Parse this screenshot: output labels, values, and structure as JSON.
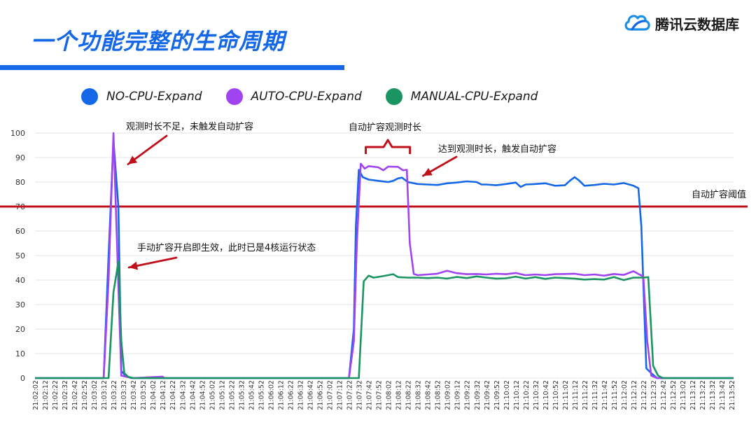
{
  "header": {
    "title": "一个功能完整的生命周期",
    "brand": "腾讯云数据库",
    "brand_icon": "cloud-icon",
    "accent_color": "#1467e6"
  },
  "chart_data": {
    "type": "line",
    "ylim": [
      0,
      100
    ],
    "yticks": [
      0,
      10,
      20,
      30,
      40,
      50,
      60,
      70,
      80,
      90,
      100
    ],
    "grid": true,
    "legend_position": "top-left",
    "x_categories": [
      "21:02:02",
      "21:02:12",
      "21:02:22",
      "21:02:32",
      "21:02:42",
      "21:02:52",
      "21:03:02",
      "21:03:12",
      "21:03:22",
      "21:03:32",
      "21:03:42",
      "21:03:52",
      "21:04:02",
      "21:04:12",
      "21:04:22",
      "21:04:32",
      "21:04:42",
      "21:04:52",
      "21:05:02",
      "21:05:12",
      "21:05:22",
      "21:05:32",
      "21:05:42",
      "21:05:52",
      "21:06:02",
      "21:06:12",
      "21:06:22",
      "21:06:32",
      "21:06:42",
      "21:06:52",
      "21:07:02",
      "21:07:12",
      "21:07:22",
      "21:07:32",
      "21:07:42",
      "21:07:52",
      "21:08:02",
      "21:08:12",
      "21:08:22",
      "21:08:32",
      "21:08:42",
      "21:08:52",
      "21:09:02",
      "21:09:12",
      "21:09:22",
      "21:09:32",
      "21:09:42",
      "21:09:52",
      "21:10:02",
      "21:10:12",
      "21:10:22",
      "21:10:32",
      "21:10:42",
      "21:10:52",
      "21:11:02",
      "21:11:12",
      "21:11:22",
      "21:11:32",
      "21:11:42",
      "21:11:52",
      "21:12:02",
      "21:12:12",
      "21:12:22",
      "21:12:32",
      "21:12:42",
      "21:12:52",
      "21:13:02",
      "21:13:12",
      "21:13:22",
      "21:13:32",
      "21:13:42",
      "21:13:52"
    ],
    "series": [
      {
        "name": "NO-CPU-Expand",
        "color": "#1467e6",
        "points": [
          [
            "21:02:02",
            0
          ],
          [
            "21:03:12",
            0
          ],
          [
            "21:03:17",
            50
          ],
          [
            "21:03:22",
            97
          ],
          [
            "21:03:27",
            70
          ],
          [
            "21:03:30",
            3
          ],
          [
            "21:03:34",
            1
          ],
          [
            "21:03:40",
            0
          ],
          [
            "21:07:22",
            0
          ],
          [
            "21:07:27",
            20
          ],
          [
            "21:07:29",
            62
          ],
          [
            "21:07:32",
            85
          ],
          [
            "21:07:36",
            82
          ],
          [
            "21:07:42",
            81
          ],
          [
            "21:07:52",
            80.5
          ],
          [
            "21:08:02",
            80
          ],
          [
            "21:08:07",
            80.5
          ],
          [
            "21:08:12",
            81.5
          ],
          [
            "21:08:16",
            81.8
          ],
          [
            "21:08:22",
            80
          ],
          [
            "21:08:32",
            79.2
          ],
          [
            "21:08:42",
            79
          ],
          [
            "21:08:52",
            78.8
          ],
          [
            "21:09:02",
            79.5
          ],
          [
            "21:09:12",
            79.8
          ],
          [
            "21:09:22",
            80.3
          ],
          [
            "21:09:32",
            80
          ],
          [
            "21:09:37",
            79
          ],
          [
            "21:09:42",
            79
          ],
          [
            "21:09:52",
            78.7
          ],
          [
            "21:10:02",
            79.2
          ],
          [
            "21:10:12",
            79.8
          ],
          [
            "21:10:17",
            78
          ],
          [
            "21:10:22",
            79
          ],
          [
            "21:10:32",
            79.2
          ],
          [
            "21:10:42",
            79.5
          ],
          [
            "21:10:52",
            78.5
          ],
          [
            "21:11:02",
            78.7
          ],
          [
            "21:11:07",
            80.5
          ],
          [
            "21:11:12",
            82
          ],
          [
            "21:11:17",
            80.5
          ],
          [
            "21:11:22",
            78.5
          ],
          [
            "21:11:32",
            78.8
          ],
          [
            "21:11:42",
            79.3
          ],
          [
            "21:11:52",
            79
          ],
          [
            "21:12:02",
            79.6
          ],
          [
            "21:12:12",
            78.5
          ],
          [
            "21:12:17",
            77.5
          ],
          [
            "21:12:20",
            62
          ],
          [
            "21:12:25",
            4
          ],
          [
            "21:12:30",
            2
          ],
          [
            "21:12:36",
            0
          ],
          [
            "21:13:54",
            0
          ]
        ]
      },
      {
        "name": "AUTO-CPU-Expand",
        "color": "#a044f0",
        "points": [
          [
            "21:02:02",
            0
          ],
          [
            "21:03:12",
            0
          ],
          [
            "21:03:17",
            40
          ],
          [
            "21:03:22",
            100
          ],
          [
            "21:03:26",
            50
          ],
          [
            "21:03:30",
            1
          ],
          [
            "21:03:36",
            0.5
          ],
          [
            "21:03:42",
            0
          ],
          [
            "21:04:12",
            0.6
          ],
          [
            "21:04:14",
            0
          ],
          [
            "21:07:22",
            0
          ],
          [
            "21:07:27",
            15
          ],
          [
            "21:07:30",
            55
          ],
          [
            "21:07:34",
            87.5
          ],
          [
            "21:07:38",
            85.5
          ],
          [
            "21:07:42",
            86.5
          ],
          [
            "21:07:52",
            86
          ],
          [
            "21:07:57",
            84.8
          ],
          [
            "21:08:02",
            86.3
          ],
          [
            "21:08:12",
            86.2
          ],
          [
            "21:08:17",
            84.8
          ],
          [
            "21:08:21",
            85
          ],
          [
            "21:08:24",
            55
          ],
          [
            "21:08:28",
            42.5
          ],
          [
            "21:08:32",
            42
          ],
          [
            "21:08:42",
            42.3
          ],
          [
            "21:08:52",
            42.6
          ],
          [
            "21:09:02",
            43.8
          ],
          [
            "21:09:12",
            42.8
          ],
          [
            "21:09:22",
            42.4
          ],
          [
            "21:09:32",
            42.5
          ],
          [
            "21:09:42",
            42.3
          ],
          [
            "21:09:52",
            42.6
          ],
          [
            "21:10:02",
            42.4
          ],
          [
            "21:10:12",
            42.9
          ],
          [
            "21:10:22",
            42
          ],
          [
            "21:10:32",
            42.3
          ],
          [
            "21:10:42",
            42
          ],
          [
            "21:10:52",
            42.4
          ],
          [
            "21:11:02",
            42.5
          ],
          [
            "21:11:12",
            42.6
          ],
          [
            "21:11:22",
            42
          ],
          [
            "21:11:32",
            42.3
          ],
          [
            "21:11:42",
            41.8
          ],
          [
            "21:11:52",
            42.5
          ],
          [
            "21:12:02",
            42.1
          ],
          [
            "21:12:12",
            43.6
          ],
          [
            "21:12:17",
            42.5
          ],
          [
            "21:12:22",
            41.5
          ],
          [
            "21:12:26",
            15
          ],
          [
            "21:12:30",
            1
          ],
          [
            "21:12:36",
            0
          ],
          [
            "21:13:54",
            0
          ]
        ]
      },
      {
        "name": "MANUAL-CPU-Expand",
        "color": "#1a9460",
        "points": [
          [
            "21:02:02",
            0
          ],
          [
            "21:03:17",
            0
          ],
          [
            "21:03:22",
            35
          ],
          [
            "21:03:27",
            47.5
          ],
          [
            "21:03:30",
            15
          ],
          [
            "21:03:33",
            2
          ],
          [
            "21:03:37",
            0.5
          ],
          [
            "21:03:42",
            0
          ],
          [
            "21:07:32",
            0
          ],
          [
            "21:07:37",
            39.5
          ],
          [
            "21:07:42",
            41.8
          ],
          [
            "21:07:47",
            41
          ],
          [
            "21:07:52",
            41.3
          ],
          [
            "21:08:02",
            42
          ],
          [
            "21:08:07",
            42.4
          ],
          [
            "21:08:12",
            41.2
          ],
          [
            "21:08:22",
            41
          ],
          [
            "21:08:32",
            41
          ],
          [
            "21:08:42",
            40.8
          ],
          [
            "21:08:52",
            41
          ],
          [
            "21:09:02",
            40.6
          ],
          [
            "21:09:12",
            41.3
          ],
          [
            "21:09:22",
            40.8
          ],
          [
            "21:09:32",
            41.5
          ],
          [
            "21:09:42",
            41
          ],
          [
            "21:09:52",
            40.6
          ],
          [
            "21:10:02",
            40.7
          ],
          [
            "21:10:12",
            41.4
          ],
          [
            "21:10:22",
            40.6
          ],
          [
            "21:10:32",
            41.2
          ],
          [
            "21:10:42",
            40.5
          ],
          [
            "21:10:52",
            41
          ],
          [
            "21:11:02",
            40.8
          ],
          [
            "21:11:12",
            40.6
          ],
          [
            "21:11:22",
            40.2
          ],
          [
            "21:11:32",
            40.4
          ],
          [
            "21:11:42",
            40.2
          ],
          [
            "21:11:52",
            41.2
          ],
          [
            "21:12:02",
            40
          ],
          [
            "21:12:12",
            41
          ],
          [
            "21:12:22",
            41
          ],
          [
            "21:12:27",
            41.2
          ],
          [
            "21:12:32",
            5
          ],
          [
            "21:12:37",
            1
          ],
          [
            "21:12:42",
            0
          ],
          [
            "21:13:54",
            0
          ]
        ]
      }
    ],
    "threshold": {
      "value": 70,
      "label": "自动扩容阈值",
      "color": "#c0101a"
    },
    "annotations": [
      {
        "text": "观测时长不足，未触发自动扩容",
        "target_x": "21:03:24",
        "target_y": 93
      },
      {
        "text": "手动扩容开启即生效，此时已是4核运行状态",
        "target_x": "21:03:32",
        "target_y": 44
      },
      {
        "text": "自动扩容观测时长",
        "from_x": "21:07:32",
        "to_x": "21:08:22"
      },
      {
        "text": "达到观测时长，触发自动扩容",
        "target_x": "21:08:34",
        "target_y": 86
      }
    ]
  }
}
